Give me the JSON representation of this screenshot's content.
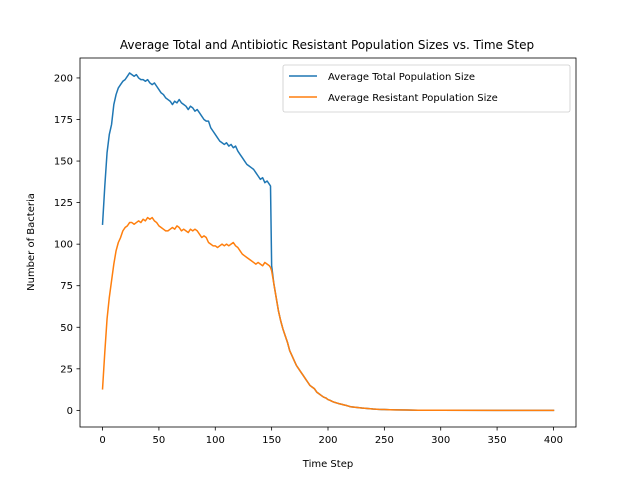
{
  "chart_data": {
    "type": "line",
    "title": "Average Total and Antibiotic Resistant Population Sizes vs. Time Step",
    "xlabel": "Time Step",
    "ylabel": "Number of Bacteria",
    "xlim": [
      -20,
      420
    ],
    "ylim": [
      -10,
      212
    ],
    "xticks": [
      0,
      50,
      100,
      150,
      200,
      250,
      300,
      350,
      400
    ],
    "yticks": [
      0,
      25,
      50,
      75,
      100,
      125,
      150,
      175,
      200
    ],
    "grid": false,
    "legend_position": "top-right",
    "series": [
      {
        "name": "Average Total Population Size",
        "color": "#1f77b4",
        "points": [
          [
            0,
            112
          ],
          [
            2,
            135
          ],
          [
            4,
            155
          ],
          [
            6,
            166
          ],
          [
            8,
            172
          ],
          [
            10,
            184
          ],
          [
            12,
            190
          ],
          [
            14,
            194
          ],
          [
            16,
            196
          ],
          [
            18,
            198
          ],
          [
            20,
            199
          ],
          [
            22,
            201
          ],
          [
            24,
            203
          ],
          [
            26,
            202
          ],
          [
            28,
            201
          ],
          [
            30,
            202
          ],
          [
            32,
            200
          ],
          [
            34,
            199
          ],
          [
            36,
            199
          ],
          [
            38,
            198
          ],
          [
            40,
            199
          ],
          [
            42,
            197
          ],
          [
            44,
            196
          ],
          [
            46,
            197
          ],
          [
            48,
            195
          ],
          [
            50,
            193
          ],
          [
            52,
            191
          ],
          [
            54,
            190
          ],
          [
            56,
            188
          ],
          [
            58,
            187
          ],
          [
            60,
            186
          ],
          [
            62,
            184
          ],
          [
            64,
            186
          ],
          [
            66,
            185
          ],
          [
            68,
            187
          ],
          [
            70,
            185
          ],
          [
            72,
            184
          ],
          [
            74,
            183
          ],
          [
            76,
            181
          ],
          [
            78,
            183
          ],
          [
            80,
            182
          ],
          [
            82,
            180
          ],
          [
            84,
            181
          ],
          [
            86,
            179
          ],
          [
            88,
            177
          ],
          [
            90,
            175
          ],
          [
            92,
            174
          ],
          [
            94,
            174
          ],
          [
            96,
            170
          ],
          [
            98,
            168
          ],
          [
            100,
            166
          ],
          [
            102,
            164
          ],
          [
            104,
            162
          ],
          [
            106,
            161
          ],
          [
            108,
            160
          ],
          [
            110,
            161
          ],
          [
            112,
            159
          ],
          [
            114,
            160
          ],
          [
            116,
            158
          ],
          [
            118,
            159
          ],
          [
            120,
            156
          ],
          [
            122,
            154
          ],
          [
            124,
            152
          ],
          [
            126,
            150
          ],
          [
            128,
            148
          ],
          [
            130,
            147
          ],
          [
            132,
            146
          ],
          [
            134,
            145
          ],
          [
            136,
            143
          ],
          [
            138,
            141
          ],
          [
            140,
            139
          ],
          [
            142,
            140
          ],
          [
            144,
            137
          ],
          [
            146,
            138
          ],
          [
            148,
            136
          ],
          [
            149,
            135
          ],
          [
            150,
            87
          ],
          [
            152,
            76
          ],
          [
            154,
            68
          ],
          [
            156,
            60
          ],
          [
            158,
            54
          ],
          [
            160,
            49
          ],
          [
            162,
            45
          ],
          [
            164,
            41
          ],
          [
            166,
            36
          ],
          [
            168,
            33
          ],
          [
            170,
            30
          ],
          [
            172,
            27
          ],
          [
            174,
            25
          ],
          [
            176,
            23
          ],
          [
            178,
            21
          ],
          [
            180,
            19
          ],
          [
            182,
            17
          ],
          [
            184,
            15
          ],
          [
            186,
            14
          ],
          [
            188,
            13
          ],
          [
            190,
            11
          ],
          [
            192,
            10
          ],
          [
            194,
            9
          ],
          [
            196,
            8
          ],
          [
            198,
            7.5
          ],
          [
            200,
            6.5
          ],
          [
            202,
            6
          ],
          [
            204,
            5.3
          ],
          [
            206,
            4.8
          ],
          [
            208,
            4.4
          ],
          [
            210,
            4
          ],
          [
            212,
            3.7
          ],
          [
            214,
            3.3
          ],
          [
            216,
            3
          ],
          [
            218,
            2.6
          ],
          [
            220,
            2.2
          ],
          [
            225,
            1.8
          ],
          [
            230,
            1.4
          ],
          [
            235,
            1.1
          ],
          [
            240,
            0.8
          ],
          [
            245,
            0.6
          ],
          [
            250,
            0.5
          ],
          [
            255,
            0.4
          ],
          [
            260,
            0.3
          ],
          [
            270,
            0.2
          ],
          [
            280,
            0.1
          ],
          [
            300,
            0.05
          ],
          [
            350,
            0.02
          ],
          [
            400,
            0.0
          ]
        ]
      },
      {
        "name": "Average Resistant Population Size",
        "color": "#ff7f0e",
        "points": [
          [
            0,
            13
          ],
          [
            2,
            35
          ],
          [
            4,
            55
          ],
          [
            6,
            68
          ],
          [
            8,
            78
          ],
          [
            10,
            88
          ],
          [
            12,
            96
          ],
          [
            14,
            101
          ],
          [
            16,
            104
          ],
          [
            18,
            108
          ],
          [
            20,
            110
          ],
          [
            22,
            111
          ],
          [
            24,
            113
          ],
          [
            26,
            113
          ],
          [
            28,
            112
          ],
          [
            30,
            113
          ],
          [
            32,
            114
          ],
          [
            34,
            113
          ],
          [
            36,
            115
          ],
          [
            38,
            114
          ],
          [
            40,
            116
          ],
          [
            42,
            115
          ],
          [
            44,
            116
          ],
          [
            46,
            114
          ],
          [
            48,
            113
          ],
          [
            50,
            111
          ],
          [
            52,
            110
          ],
          [
            54,
            109
          ],
          [
            56,
            108
          ],
          [
            58,
            108
          ],
          [
            60,
            109
          ],
          [
            62,
            110
          ],
          [
            64,
            109
          ],
          [
            66,
            111
          ],
          [
            68,
            110
          ],
          [
            70,
            108
          ],
          [
            72,
            109
          ],
          [
            74,
            108
          ],
          [
            76,
            107
          ],
          [
            78,
            109
          ],
          [
            80,
            108
          ],
          [
            82,
            109
          ],
          [
            84,
            108
          ],
          [
            86,
            106
          ],
          [
            88,
            104
          ],
          [
            90,
            105
          ],
          [
            92,
            104
          ],
          [
            94,
            101
          ],
          [
            96,
            100
          ],
          [
            98,
            99
          ],
          [
            100,
            99
          ],
          [
            102,
            98
          ],
          [
            104,
            99
          ],
          [
            106,
            100
          ],
          [
            108,
            99
          ],
          [
            110,
            100
          ],
          [
            112,
            99
          ],
          [
            114,
            100
          ],
          [
            116,
            101
          ],
          [
            118,
            99
          ],
          [
            120,
            98
          ],
          [
            122,
            96
          ],
          [
            124,
            94
          ],
          [
            126,
            93
          ],
          [
            128,
            92
          ],
          [
            130,
            91
          ],
          [
            132,
            90
          ],
          [
            134,
            89
          ],
          [
            136,
            88
          ],
          [
            138,
            89
          ],
          [
            140,
            88
          ],
          [
            142,
            87
          ],
          [
            144,
            89
          ],
          [
            146,
            88
          ],
          [
            148,
            87
          ],
          [
            149,
            86
          ],
          [
            150,
            84
          ],
          [
            152,
            76
          ],
          [
            154,
            68
          ],
          [
            156,
            60
          ],
          [
            158,
            54
          ],
          [
            160,
            49
          ],
          [
            162,
            45
          ],
          [
            164,
            41
          ],
          [
            166,
            36
          ],
          [
            168,
            33
          ],
          [
            170,
            30
          ],
          [
            172,
            27
          ],
          [
            174,
            25
          ],
          [
            176,
            23
          ],
          [
            178,
            21
          ],
          [
            180,
            19
          ],
          [
            182,
            17
          ],
          [
            184,
            15
          ],
          [
            186,
            14
          ],
          [
            188,
            13
          ],
          [
            190,
            11
          ],
          [
            192,
            10
          ],
          [
            194,
            9
          ],
          [
            196,
            8
          ],
          [
            198,
            7.5
          ],
          [
            200,
            6.5
          ],
          [
            202,
            6
          ],
          [
            204,
            5.3
          ],
          [
            206,
            4.8
          ],
          [
            208,
            4.4
          ],
          [
            210,
            4
          ],
          [
            212,
            3.7
          ],
          [
            214,
            3.3
          ],
          [
            216,
            3
          ],
          [
            218,
            2.6
          ],
          [
            220,
            2.2
          ],
          [
            225,
            1.8
          ],
          [
            230,
            1.4
          ],
          [
            235,
            1.1
          ],
          [
            240,
            0.8
          ],
          [
            245,
            0.6
          ],
          [
            250,
            0.5
          ],
          [
            255,
            0.4
          ],
          [
            260,
            0.3
          ],
          [
            270,
            0.2
          ],
          [
            280,
            0.1
          ],
          [
            300,
            0.05
          ],
          [
            350,
            0.02
          ],
          [
            400,
            0.0
          ]
        ]
      }
    ]
  }
}
